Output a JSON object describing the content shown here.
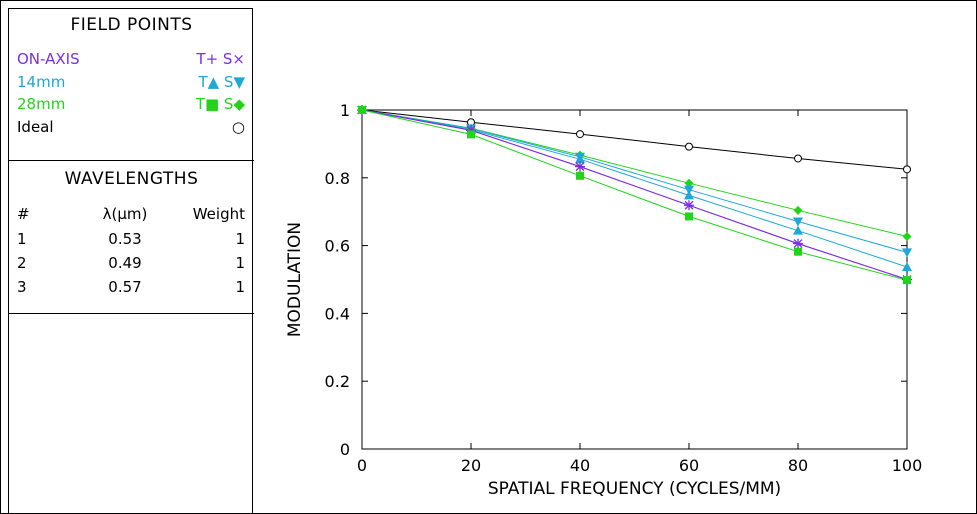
{
  "field_points": {
    "title": "FIELD POINTS",
    "rows": [
      {
        "label": "ON-AXIS",
        "symbols": "T+ S×",
        "color": "#7b2fe0"
      },
      {
        "label": "14mm",
        "symbols": "T▲ S▼",
        "color": "#1fa7d6"
      },
      {
        "label": "28mm",
        "symbols": "T■ S◆",
        "color": "#21d41a"
      },
      {
        "label": "Ideal",
        "symbols": "○",
        "color": "#000000"
      }
    ]
  },
  "wavelengths": {
    "title": "WAVELENGTHS",
    "headers": [
      "#",
      "λ(μm)",
      "Weight"
    ],
    "rows": [
      [
        "1",
        "0.53",
        "1"
      ],
      [
        "2",
        "0.49",
        "1"
      ],
      [
        "3",
        "0.57",
        "1"
      ]
    ]
  },
  "chart_data": {
    "type": "line",
    "xlabel": "SPATIAL FREQUENCY (CYCLES/MM)",
    "ylabel": "MODULATION",
    "xlim": [
      0,
      100
    ],
    "ylim": [
      0,
      1
    ],
    "x_ticks": [
      0,
      20,
      40,
      60,
      80,
      100
    ],
    "y_ticks": [
      0,
      0.2,
      0.4,
      0.6,
      0.8,
      1
    ],
    "y_tick_labels": [
      "0",
      "0.2",
      "0.4",
      "0.6",
      "0.8",
      "1"
    ],
    "grid": false,
    "x": [
      0,
      20,
      40,
      60,
      80,
      100
    ],
    "series": [
      {
        "name": "Ideal",
        "marker": "circle",
        "color": "#000000",
        "values": [
          1.0,
          0.964,
          0.929,
          0.892,
          0.857,
          0.825
        ]
      },
      {
        "name": "28mm S",
        "marker": "diamond",
        "color": "#21d41a",
        "values": [
          1.0,
          0.946,
          0.867,
          0.784,
          0.704,
          0.627
        ]
      },
      {
        "name": "14mm S",
        "marker": "tri-down",
        "color": "#1fa7d6",
        "values": [
          1.0,
          0.945,
          0.862,
          0.765,
          0.671,
          0.58
        ]
      },
      {
        "name": "14mm T",
        "marker": "tri-up",
        "color": "#1fa7d6",
        "values": [
          1.0,
          0.942,
          0.855,
          0.748,
          0.644,
          0.537
        ]
      },
      {
        "name": "ON-AXIS T",
        "marker": "plus",
        "color": "#7b2fe0",
        "values": [
          1.0,
          0.94,
          0.833,
          0.719,
          0.606,
          0.5
        ]
      },
      {
        "name": "ON-AXIS S",
        "marker": "cross",
        "color": "#7b2fe0",
        "values": [
          1.0,
          0.94,
          0.833,
          0.719,
          0.606,
          0.5
        ]
      },
      {
        "name": "28mm T",
        "marker": "square",
        "color": "#21d41a",
        "values": [
          1.0,
          0.928,
          0.806,
          0.686,
          0.582,
          0.498
        ]
      }
    ]
  }
}
